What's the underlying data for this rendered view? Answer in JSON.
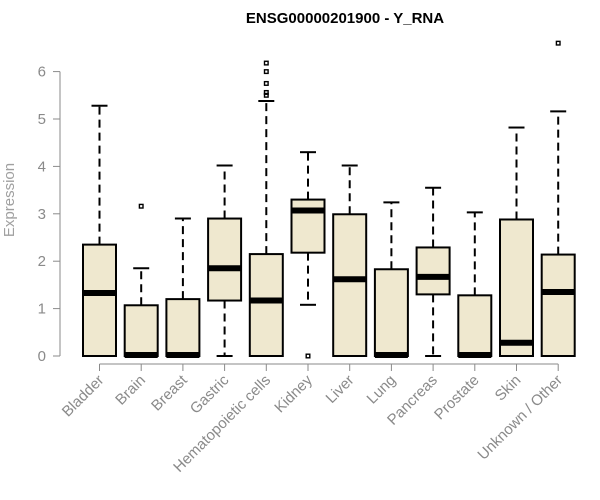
{
  "chart_data": {
    "type": "box",
    "title": "ENSG00000201900 - Y_RNA",
    "ylabel": "Expression",
    "xlabel": "",
    "ylim": [
      0,
      6.6
    ],
    "yticks": [
      0,
      1,
      2,
      3,
      4,
      5,
      6
    ],
    "grid": false,
    "box_fill": "#efe8cf",
    "box_stroke": "#000000",
    "axis_color": "#8a8a8a",
    "categories": [
      "Bladder",
      "Brain",
      "Breast",
      "Gastric",
      "Hematopoietic cells",
      "Kidney",
      "Liver",
      "Lung",
      "Pancreas",
      "Prostate",
      "Skin",
      "Unknown / Other"
    ],
    "boxes": [
      {
        "q1": 0,
        "median": 1.33,
        "q3": 2.35,
        "whisker_low": 0,
        "whisker_high": 5.28,
        "outliers": []
      },
      {
        "q1": 0,
        "median": 0.02,
        "q3": 1.07,
        "whisker_low": 0,
        "whisker_high": 1.85,
        "outliers": [
          3.16
        ]
      },
      {
        "q1": 0,
        "median": 0.02,
        "q3": 1.2,
        "whisker_low": 0,
        "whisker_high": 2.9,
        "outliers": []
      },
      {
        "q1": 1.17,
        "median": 1.85,
        "q3": 2.9,
        "whisker_low": 0,
        "whisker_high": 4.02,
        "outliers": []
      },
      {
        "q1": 0,
        "median": 1.17,
        "q3": 2.15,
        "whisker_low": 0,
        "whisker_high": 5.38,
        "outliers": [
          5.5,
          5.56,
          5.75,
          6.0,
          6.18
        ]
      },
      {
        "q1": 2.18,
        "median": 3.07,
        "q3": 3.3,
        "whisker_low": 1.08,
        "whisker_high": 4.3,
        "outliers": [
          0
        ]
      },
      {
        "q1": 0,
        "median": 1.62,
        "q3": 2.99,
        "whisker_low": 0,
        "whisker_high": 4.02,
        "outliers": []
      },
      {
        "q1": 0,
        "median": 0.02,
        "q3": 1.83,
        "whisker_low": 0,
        "whisker_high": 3.24,
        "outliers": []
      },
      {
        "q1": 1.3,
        "median": 1.67,
        "q3": 2.29,
        "whisker_low": 0,
        "whisker_high": 3.55,
        "outliers": []
      },
      {
        "q1": 0,
        "median": 0.02,
        "q3": 1.28,
        "whisker_low": 0,
        "whisker_high": 3.03,
        "outliers": []
      },
      {
        "q1": 0,
        "median": 0.28,
        "q3": 2.88,
        "whisker_low": 0,
        "whisker_high": 4.82,
        "outliers": []
      },
      {
        "q1": 0,
        "median": 1.35,
        "q3": 2.14,
        "whisker_low": 0,
        "whisker_high": 5.16,
        "outliers": [
          6.6
        ]
      }
    ]
  }
}
